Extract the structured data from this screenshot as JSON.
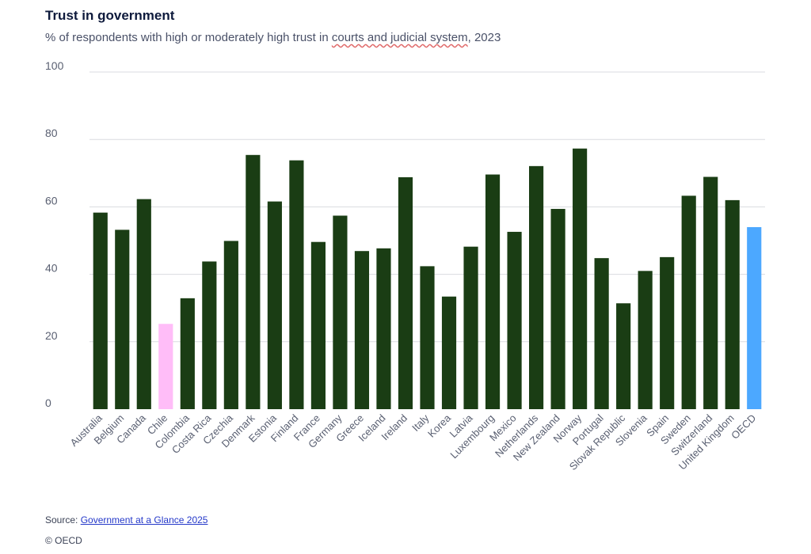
{
  "header": {
    "title": "Trust in government",
    "subtitle_prefix": "% of respondents with high or moderately high trust in ",
    "subtitle_highlight": "courts and judicial system",
    "subtitle_suffix": ", 2023"
  },
  "chart_data": {
    "type": "bar",
    "title": "Trust in government",
    "subtitle": "% of respondents with high or moderately high trust in courts and judicial system, 2023",
    "xlabel": "",
    "ylabel": "",
    "ylim": [
      0,
      100
    ],
    "yticks": [
      0,
      20,
      40,
      60,
      80,
      100
    ],
    "grid": true,
    "categories": [
      "Australia",
      "Belgium",
      "Canada",
      "Chile",
      "Colombia",
      "Costa Rica",
      "Czechia",
      "Denmark",
      "Estonia",
      "Finland",
      "France",
      "Germany",
      "Greece",
      "Iceland",
      "Ireland",
      "Italy",
      "Korea",
      "Latvia",
      "Luxembourg",
      "Mexico",
      "Netherlands",
      "New Zealand",
      "Norway",
      "Portugal",
      "Slovak Republic",
      "Slovenia",
      "Spain",
      "Sweden",
      "Switzerland",
      "United Kingdom",
      "OECD"
    ],
    "values": [
      58.3,
      53.2,
      62.3,
      25.3,
      32.9,
      43.8,
      49.9,
      75.4,
      61.6,
      73.8,
      49.6,
      57.4,
      46.9,
      47.7,
      68.8,
      42.4,
      33.4,
      48.2,
      69.6,
      52.6,
      72.1,
      59.4,
      77.3,
      44.8,
      31.4,
      41.0,
      45.1,
      63.3,
      68.9,
      62.0,
      54.0
    ],
    "colors": {
      "default": "#1a3d14",
      "Chile": "#ffbdf8",
      "OECD": "#4ca8ff"
    }
  },
  "footer": {
    "source_label": "Source: ",
    "source_link": "Government at a Glance 2025",
    "copyright": "© OECD"
  }
}
